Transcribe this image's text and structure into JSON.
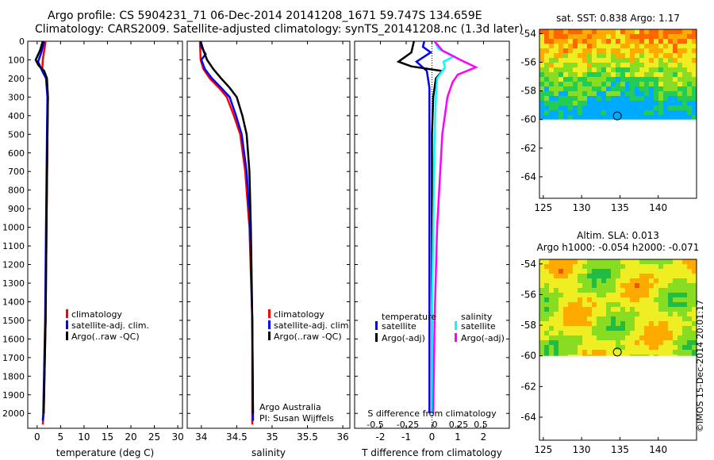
{
  "header": {
    "line1": "Argo profile: CS 5904231_71 06-Dec-2014 20141208_1671 59.747S 134.659E",
    "line2": "Climatology: CARS2009. Satellite-adjusted climatology: synTS_20141208.nc (1.3d later)"
  },
  "credit": "©IMOS 15-Dec-2014 20:01:17",
  "colors": {
    "climatology": "#ff0000",
    "satellite": "#0000ff",
    "argo": "#000000",
    "sal_satellite": "#00ffff",
    "sal_argo": "#ff00ff"
  },
  "chart_data": [
    {
      "type": "line",
      "id": "temperature",
      "xlabel": "temperature (deg C)",
      "ylabel": "",
      "xlim": [
        -2,
        31
      ],
      "ylim": [
        2080,
        0
      ],
      "xticks": [
        "0",
        "5",
        "10",
        "15",
        "20",
        "25",
        "30"
      ],
      "yticks": [
        "0",
        "100",
        "200",
        "300",
        "400",
        "500",
        "600",
        "700",
        "800",
        "900",
        "1000",
        "1100",
        "1200",
        "1300",
        "1400",
        "1500",
        "1600",
        "1700",
        "1800",
        "1900",
        "2000"
      ],
      "legend": [
        "climatology",
        "satellite-adj. clim.",
        "Argo(..raw -QC)"
      ],
      "series": [
        {
          "name": "climatology",
          "color": "#ff0000",
          "points": [
            [
              1.8,
              0
            ],
            [
              1.5,
              50
            ],
            [
              1.2,
              100
            ],
            [
              1.1,
              150
            ],
            [
              2.0,
              200
            ],
            [
              2.3,
              300
            ],
            [
              2.2,
              500
            ],
            [
              2.0,
              1000
            ],
            [
              1.8,
              1500
            ],
            [
              1.4,
              2000
            ],
            [
              1.2,
              2060
            ]
          ]
        },
        {
          "name": "satellite-adj. clim.",
          "color": "#0000ff",
          "points": [
            [
              1.5,
              0
            ],
            [
              0.9,
              60
            ],
            [
              0.2,
              110
            ],
            [
              0.9,
              150
            ],
            [
              1.9,
              200
            ],
            [
              2.2,
              300
            ],
            [
              2.1,
              500
            ],
            [
              1.9,
              1000
            ],
            [
              1.7,
              1500
            ],
            [
              1.3,
              2000
            ],
            [
              1.2,
              2040
            ]
          ]
        },
        {
          "name": "Argo(..raw -QC)",
          "color": "#000000",
          "points": [
            [
              1.2,
              0
            ],
            [
              0.6,
              50
            ],
            [
              -0.3,
              100
            ],
            [
              0.3,
              130
            ],
            [
              1.5,
              160
            ],
            [
              2.1,
              200
            ],
            [
              2.3,
              300
            ],
            [
              2.2,
              500
            ],
            [
              2.0,
              1000
            ],
            [
              1.8,
              1500
            ],
            [
              1.4,
              2000
            ]
          ]
        }
      ]
    },
    {
      "type": "line",
      "id": "salinity",
      "xlabel": "salinity",
      "ylabel": "",
      "xlim": [
        33.8,
        36.1
      ],
      "ylim": [
        2080,
        0
      ],
      "xticks": [
        "34",
        "34.5",
        "35",
        "35.5",
        "36"
      ],
      "legend": [
        "climatology",
        "satellite-adj. clim.",
        "Argo(..raw -QC)"
      ],
      "annotation": [
        "Argo Australia",
        "PI: Susan Wijffels"
      ],
      "series": [
        {
          "name": "climatology",
          "color": "#ff0000",
          "points": [
            [
              33.98,
              0
            ],
            [
              33.99,
              100
            ],
            [
              34.03,
              150
            ],
            [
              34.12,
              200
            ],
            [
              34.25,
              250
            ],
            [
              34.36,
              300
            ],
            [
              34.46,
              400
            ],
            [
              34.55,
              500
            ],
            [
              34.62,
              700
            ],
            [
              34.68,
              1000
            ],
            [
              34.72,
              1500
            ],
            [
              34.72,
              2000
            ],
            [
              34.72,
              2060
            ]
          ]
        },
        {
          "name": "satellite-adj. clim.",
          "color": "#0000ff",
          "points": [
            [
              33.99,
              0
            ],
            [
              34.0,
              30
            ],
            [
              34.06,
              70
            ],
            [
              34.0,
              100
            ],
            [
              34.05,
              150
            ],
            [
              34.15,
              200
            ],
            [
              34.28,
              250
            ],
            [
              34.4,
              300
            ],
            [
              34.49,
              400
            ],
            [
              34.57,
              500
            ],
            [
              34.64,
              700
            ],
            [
              34.69,
              1000
            ],
            [
              34.72,
              1500
            ],
            [
              34.73,
              2000
            ],
            [
              34.73,
              2040
            ]
          ]
        },
        {
          "name": "Argo(..raw -QC)",
          "color": "#000000",
          "points": [
            [
              33.99,
              0
            ],
            [
              34.03,
              50
            ],
            [
              34.08,
              100
            ],
            [
              34.17,
              150
            ],
            [
              34.28,
              200
            ],
            [
              34.4,
              250
            ],
            [
              34.5,
              300
            ],
            [
              34.58,
              400
            ],
            [
              34.64,
              500
            ],
            [
              34.68,
              700
            ],
            [
              34.7,
              1000
            ],
            [
              34.72,
              1500
            ],
            [
              34.73,
              2000
            ]
          ]
        }
      ]
    },
    {
      "type": "line",
      "id": "difference",
      "xlabel": "T difference from climatology",
      "ylabel": "",
      "xlim": [
        -3,
        3
      ],
      "ylim": [
        2080,
        0
      ],
      "xticks": [
        "-2",
        "-1",
        "0",
        "1",
        "2"
      ],
      "secondary_xlabel": "S difference from climatology",
      "secondary_xticks": [
        "-0.5",
        "-0.25",
        "0",
        "0.25",
        "0.5"
      ],
      "legend_groups": [
        {
          "title": "temperature",
          "items": [
            "satellite",
            "Argo(-adj)"
          ]
        },
        {
          "title": "salinity",
          "items": [
            "satellite",
            "Argo(-adj)"
          ]
        }
      ],
      "series": [
        {
          "name": "temperature satellite",
          "color": "#0000ff",
          "points": [
            [
              -0.3,
              0
            ],
            [
              -0.35,
              30
            ],
            [
              -0.05,
              60
            ],
            [
              -0.6,
              110
            ],
            [
              -0.2,
              160
            ],
            [
              -0.1,
              250
            ],
            [
              -0.1,
              500
            ],
            [
              -0.1,
              1000
            ],
            [
              -0.1,
              1500
            ],
            [
              -0.1,
              2000
            ]
          ]
        },
        {
          "name": "temperature Argo(-adj)",
          "color": "#000000",
          "points": [
            [
              -0.7,
              0
            ],
            [
              -0.8,
              60
            ],
            [
              -1.3,
              110
            ],
            [
              -0.8,
              135
            ],
            [
              0.4,
              160
            ],
            [
              0.15,
              200
            ],
            [
              0.05,
              300
            ],
            [
              0.0,
              500
            ],
            [
              0.0,
              1000
            ],
            [
              0.0,
              1500
            ],
            [
              0.0,
              2000
            ]
          ]
        },
        {
          "name": "salinity satellite",
          "color": "#00ffff",
          "points": [
            [
              0.1,
              0
            ],
            [
              0.25,
              40
            ],
            [
              0.85,
              80
            ],
            [
              0.45,
              110
            ],
            [
              0.5,
              140
            ],
            [
              0.2,
              200
            ],
            [
              0.15,
              300
            ],
            [
              0.1,
              500
            ],
            [
              0.05,
              1000
            ],
            [
              0.0,
              1500
            ],
            [
              0.0,
              2000
            ]
          ]
        },
        {
          "name": "salinity Argo(-adj)",
          "color": "#ff00ff",
          "points": [
            [
              0.1,
              0
            ],
            [
              0.4,
              50
            ],
            [
              1.1,
              100
            ],
            [
              1.7,
              140
            ],
            [
              1.0,
              180
            ],
            [
              0.8,
              220
            ],
            [
              0.6,
              300
            ],
            [
              0.4,
              500
            ],
            [
              0.2,
              1000
            ],
            [
              0.1,
              1500
            ],
            [
              0.05,
              2000
            ]
          ]
        }
      ]
    },
    {
      "type": "heatmap",
      "id": "sst_map",
      "title": "sat. SST: 0.838  Argo: 1.17",
      "xlim": [
        124.5,
        145
      ],
      "ylim": [
        -65.5,
        -53.7
      ],
      "xticks": [
        "125",
        "130",
        "135",
        "140"
      ],
      "yticks": [
        "-54",
        "-56",
        "-58",
        "-60",
        "-62",
        "-64"
      ],
      "data_extent_lat": [
        -60,
        -53.7
      ],
      "marker": {
        "lon": 134.659,
        "lat": -59.747
      },
      "colorscale": [
        "#00aaff",
        "#22cc55",
        "#88dd22",
        "#eeee22",
        "#ffaa00",
        "#ff6600"
      ]
    },
    {
      "type": "heatmap",
      "id": "sla_map",
      "title": "Altim. SLA: 0.013",
      "subtitle": "Argo h1000: -0.054  h2000: -0.071",
      "xlim": [
        124.5,
        145
      ],
      "ylim": [
        -65.5,
        -53.7
      ],
      "xticks": [
        "125",
        "130",
        "135",
        "140"
      ],
      "yticks": [
        "-54",
        "-56",
        "-58",
        "-60",
        "-62",
        "-64"
      ],
      "data_extent_lat": [
        -60,
        -53.7
      ],
      "marker": {
        "lon": 134.659,
        "lat": -59.747
      },
      "colorscale": [
        "#22bb44",
        "#88dd22",
        "#eeee22",
        "#ffaa00",
        "#ee5500"
      ]
    }
  ]
}
